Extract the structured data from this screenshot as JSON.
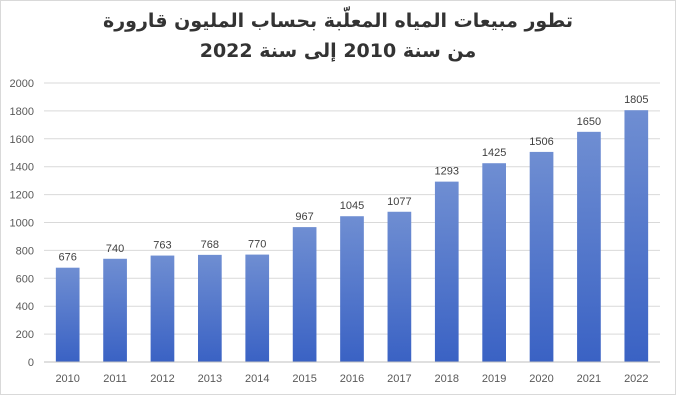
{
  "chart_data": {
    "type": "bar",
    "title_line1": "تطور مبيعات المياه المعلّبة بحساب المليون قارورة",
    "title_line2": "من سنة 2010 إلى سنة 2022",
    "xlabel": "",
    "ylabel": "",
    "categories": [
      "2010",
      "2011",
      "2012",
      "2013",
      "2014",
      "2015",
      "2016",
      "2017",
      "2018",
      "2019",
      "2020",
      "2021",
      "2022"
    ],
    "values": [
      676,
      740,
      763,
      768,
      770,
      967,
      1045,
      1077,
      1293,
      1425,
      1506,
      1650,
      1805
    ],
    "ylim": [
      0,
      2000
    ],
    "yticks": [
      0,
      200,
      400,
      600,
      800,
      1000,
      1200,
      1400,
      1600,
      1800,
      2000
    ],
    "grid": true,
    "legend": "none",
    "colors": {
      "bar_top": "#6f8ed2",
      "bar_bottom": "#3a62c4",
      "grid": "#d9d9d9",
      "axis": "#bfbfbf"
    }
  }
}
